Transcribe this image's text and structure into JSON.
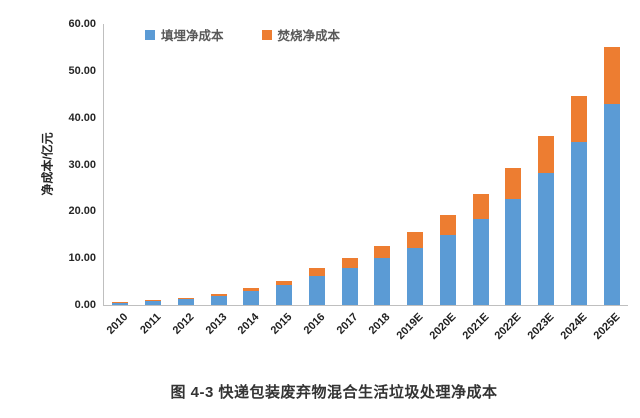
{
  "figure": {
    "caption": "图 4-3 快递包装废弃物混合生活垃圾处理净成本"
  },
  "chart_data": {
    "type": "bar",
    "stacked": true,
    "title": "",
    "xlabel": "",
    "ylabel": "净成本/亿元",
    "ylim": [
      0,
      60
    ],
    "ytick_step": 10,
    "yticks": [
      "0.00",
      "10.00",
      "20.00",
      "30.00",
      "40.00",
      "50.00",
      "60.00"
    ],
    "grid": false,
    "legend_position": "top-left",
    "categories": [
      "2010",
      "2011",
      "2012",
      "2013",
      "2014",
      "2015",
      "2016",
      "2017",
      "2018",
      "2019E",
      "2020E",
      "2021E",
      "2022E",
      "2023E",
      "2024E",
      "2025E"
    ],
    "series": [
      {
        "name": "填埋净成本",
        "color": "#5B9BD5",
        "values": [
          0.6,
          0.85,
          1.3,
          1.9,
          3.0,
          4.3,
          6.1,
          7.8,
          10.1,
          12.2,
          15.0,
          18.3,
          22.6,
          28.2,
          34.8,
          43.0
        ]
      },
      {
        "name": "焚烧净成本",
        "color": "#ED7D31",
        "values": [
          0.1,
          0.15,
          0.2,
          0.5,
          0.7,
          0.9,
          1.7,
          2.2,
          2.6,
          3.3,
          4.2,
          5.4,
          6.6,
          7.8,
          9.9,
          12.0
        ]
      }
    ]
  },
  "colors": {
    "axis_line": "#BFBFBF",
    "tick_text": "#262626",
    "legend_text": "#595959",
    "caption_text": "#333333",
    "background": "#FFFFFF"
  }
}
